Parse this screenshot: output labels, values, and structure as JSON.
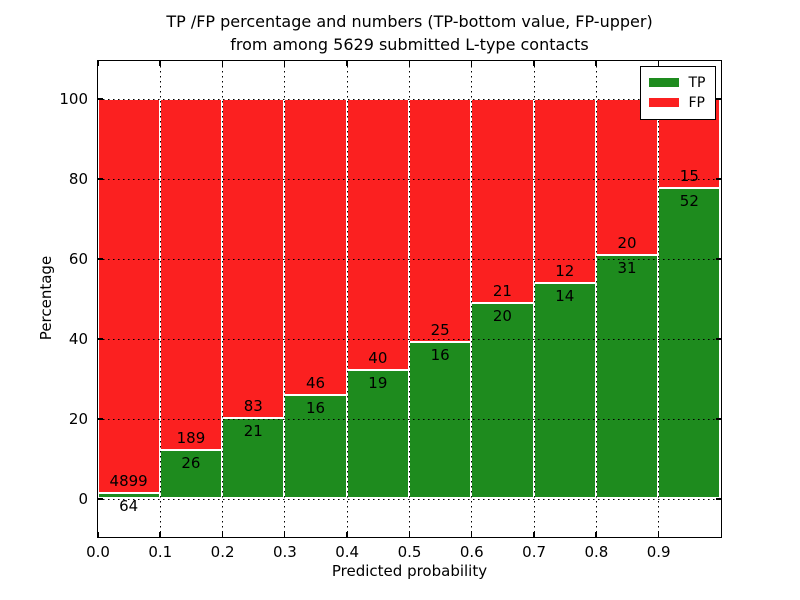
{
  "title": {
    "line1": "TP /FP percentage and numbers (TP-bottom value, FP-upper)",
    "line2": "from among 5629 submitted L-type contacts"
  },
  "axes": {
    "xlabel": "Predicted probability",
    "ylabel": "Percentage",
    "xticks": [
      "0.0",
      "0.1",
      "0.2",
      "0.3",
      "0.4",
      "0.5",
      "0.6",
      "0.7",
      "0.8",
      "0.9"
    ],
    "xtick_values": [
      0.0,
      0.1,
      0.2,
      0.3,
      0.4,
      0.5,
      0.6,
      0.7,
      0.8,
      0.9
    ],
    "yticks": [
      "0",
      "20",
      "40",
      "60",
      "80",
      "100"
    ],
    "ytick_values": [
      0,
      20,
      40,
      60,
      80,
      100
    ]
  },
  "legend": {
    "position": "upper right",
    "entries": [
      {
        "label": "TP",
        "color": "#1e8b1e"
      },
      {
        "label": "FP",
        "color": "#fb2020"
      }
    ]
  },
  "chart_data": {
    "type": "bar",
    "stacked": true,
    "title": "TP /FP percentage and numbers (TP-bottom value, FP-upper) from among 5629 submitted L-type contacts",
    "xlabel": "Predicted probability",
    "ylabel": "Percentage",
    "bin_width": 0.1,
    "bin_starts": [
      0.0,
      0.1,
      0.2,
      0.3,
      0.4,
      0.5,
      0.6,
      0.7,
      0.8,
      0.9
    ],
    "series": [
      {
        "name": "TP",
        "color": "#1e8b1e",
        "counts": [
          64,
          26,
          21,
          16,
          19,
          16,
          20,
          14,
          31,
          52
        ]
      },
      {
        "name": "FP",
        "color": "#fb2020",
        "counts": [
          4899,
          189,
          83,
          46,
          40,
          25,
          21,
          12,
          20,
          15
        ]
      }
    ],
    "tp_percent_of_bar": [
      1.3,
      12.1,
      20.2,
      25.8,
      32.2,
      39.0,
      48.8,
      53.8,
      60.8,
      77.6
    ],
    "bars_total_percent": 100,
    "xlim": [
      0.0,
      1.0
    ],
    "ylim": [
      -9.5,
      109.5
    ],
    "grid": "dotted",
    "legend_position": "upper right",
    "annotation_note_from_title": "TP-bottom value, FP-upper"
  }
}
